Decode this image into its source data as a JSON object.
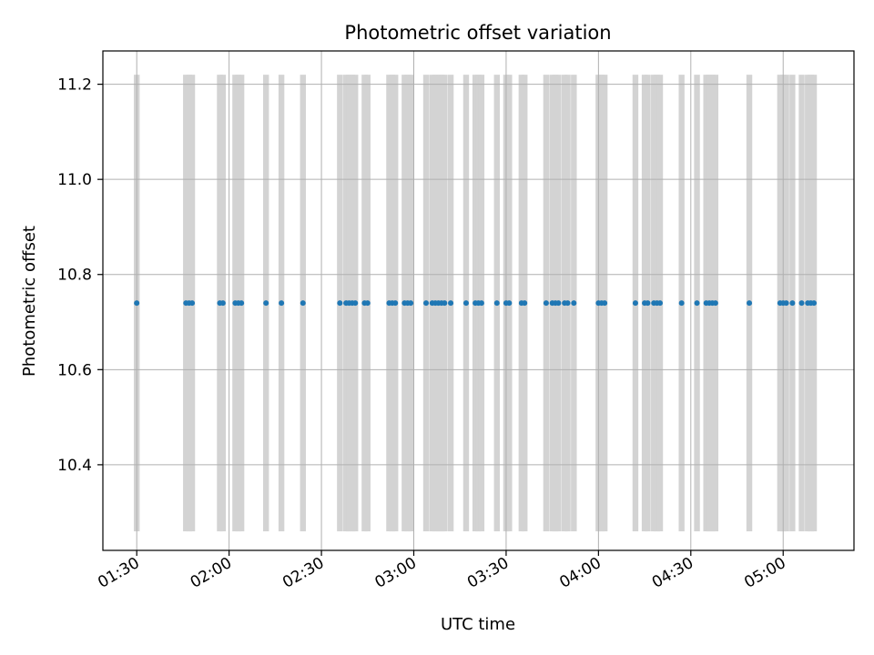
{
  "chart_data": {
    "type": "scatter",
    "title": "Photometric offset variation",
    "xlabel": "UTC time",
    "ylabel": "Photometric offset",
    "x_axis_kind": "time",
    "x_tick_labels": [
      "01:30",
      "02:00",
      "02:30",
      "03:00",
      "03:30",
      "04:00",
      "04:30",
      "05:00"
    ],
    "x_ticks": [
      "01:30",
      "02:00",
      "02:30",
      "03:00",
      "03:30",
      "04:00",
      "04:30",
      "05:00"
    ],
    "xlim": [
      "01:19",
      "05:23"
    ],
    "y_tick_labels": [
      "10.4",
      "10.6",
      "10.8",
      "11.0",
      "11.2"
    ],
    "y_ticks": [
      10.4,
      10.6,
      10.8,
      11.0,
      11.2
    ],
    "ylim": [
      10.22,
      11.27
    ],
    "grid": true,
    "span_y_range": [
      10.26,
      11.22
    ],
    "span_color": "#d3d3d3",
    "point_color": "#1f77b4",
    "series": [
      {
        "x": [
          "01:30",
          "01:46",
          "01:47",
          "01:48",
          "01:57",
          "01:58",
          "02:02",
          "02:03",
          "02:04",
          "02:12",
          "02:17",
          "02:24",
          "02:36",
          "02:38",
          "02:39",
          "02:40",
          "02:41",
          "02:44",
          "02:45",
          "02:52",
          "02:53",
          "02:54",
          "02:57",
          "02:58",
          "02:59",
          "03:04",
          "03:06",
          "03:07",
          "03:08",
          "03:09",
          "03:10",
          "03:12",
          "03:17",
          "03:20",
          "03:21",
          "03:22",
          "03:27",
          "03:30",
          "03:31",
          "03:35",
          "03:36",
          "03:43",
          "03:45",
          "03:46",
          "03:47",
          "03:49",
          "03:50",
          "03:52",
          "04:00",
          "04:01",
          "04:02",
          "04:12",
          "04:15",
          "04:16",
          "04:18",
          "04:19",
          "04:20",
          "04:27",
          "04:32",
          "04:35",
          "04:36",
          "04:37",
          "04:38",
          "04:49",
          "04:59",
          "05:00",
          "05:01",
          "05:03",
          "05:06",
          "05:08",
          "05:09",
          "05:10"
        ],
        "y": [
          10.74,
          10.74,
          10.74,
          10.74,
          10.74,
          10.74,
          10.74,
          10.74,
          10.74,
          10.74,
          10.74,
          10.74,
          10.74,
          10.74,
          10.74,
          10.74,
          10.74,
          10.74,
          10.74,
          10.74,
          10.74,
          10.74,
          10.74,
          10.74,
          10.74,
          10.74,
          10.74,
          10.74,
          10.74,
          10.74,
          10.74,
          10.74,
          10.74,
          10.74,
          10.74,
          10.74,
          10.74,
          10.74,
          10.74,
          10.74,
          10.74,
          10.74,
          10.74,
          10.74,
          10.74,
          10.74,
          10.74,
          10.74,
          10.74,
          10.74,
          10.74,
          10.74,
          10.74,
          10.74,
          10.74,
          10.74,
          10.74,
          10.74,
          10.74,
          10.74,
          10.74,
          10.74,
          10.74,
          10.74,
          10.74,
          10.74,
          10.74,
          10.74,
          10.74,
          10.74,
          10.74,
          10.74
        ]
      }
    ]
  }
}
